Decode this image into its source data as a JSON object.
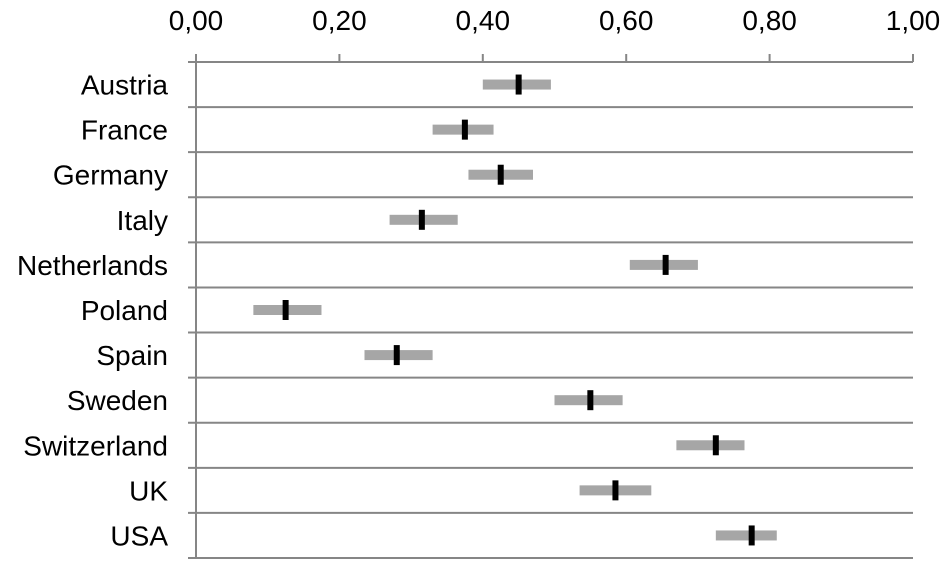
{
  "chart_data": {
    "type": "interval",
    "orientation": "horizontal",
    "x_axis_position": "top",
    "xlim": [
      0,
      1
    ],
    "x_ticks": [
      0,
      0.2,
      0.4,
      0.6,
      0.8,
      1.0
    ],
    "x_tick_labels": [
      "0,00",
      "0,20",
      "0,40",
      "0,60",
      "0,80",
      "1,00"
    ],
    "grid": "horizontal lines between categories",
    "categories": [
      "Austria",
      "France",
      "Germany",
      "Italy",
      "Netherlands",
      "Poland",
      "Spain",
      "Sweden",
      "Switzerland",
      "UK",
      "USA"
    ],
    "series": [
      {
        "point": [
          0.45,
          0.375,
          0.425,
          0.315,
          0.655,
          0.125,
          0.28,
          0.55,
          0.725,
          0.585,
          0.775
        ],
        "lower": [
          0.4,
          0.33,
          0.38,
          0.27,
          0.605,
          0.08,
          0.235,
          0.5,
          0.67,
          0.535,
          0.725
        ],
        "upper": [
          0.495,
          0.415,
          0.47,
          0.365,
          0.7,
          0.175,
          0.33,
          0.595,
          0.765,
          0.635,
          0.81
        ]
      }
    ],
    "colors": {
      "interval": "#a6a6a6",
      "point": "#000000",
      "axis": "#868686"
    }
  }
}
